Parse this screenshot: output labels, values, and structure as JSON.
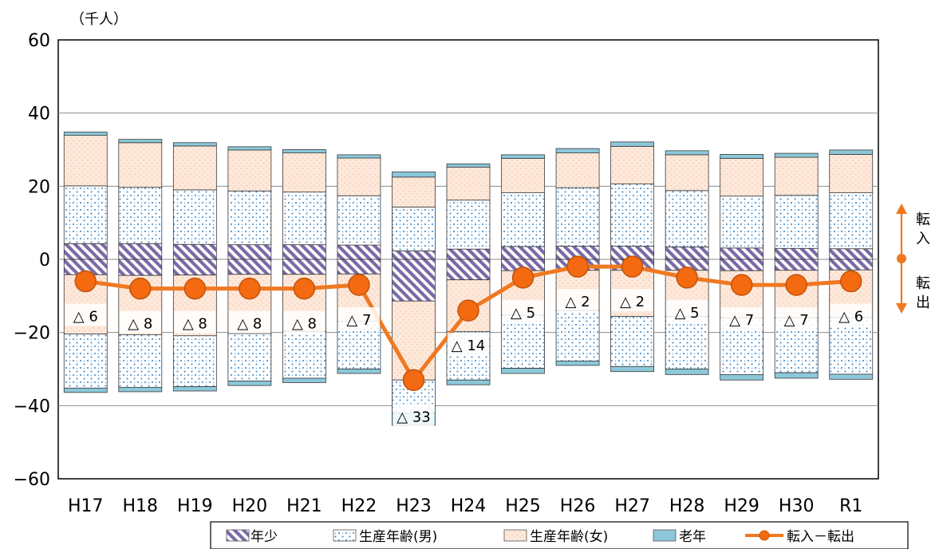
{
  "chart_data": {
    "type": "bar",
    "stacked": true,
    "unit_label": "（千人）",
    "categories": [
      "H17",
      "H18",
      "H19",
      "H20",
      "H21",
      "H22",
      "H23",
      "H24",
      "H25",
      "H26",
      "H27",
      "H28",
      "H29",
      "H30",
      "R1"
    ],
    "ylim": [
      -60,
      60
    ],
    "yticks": [
      60,
      40,
      20,
      0,
      -20,
      -40,
      -60
    ],
    "ytick_labels": [
      "60",
      "40",
      "20",
      "0",
      "−20",
      "−40",
      "−60"
    ],
    "grid": true,
    "in_series": [
      {
        "name": "年少",
        "values": [
          4.3,
          4.3,
          4.1,
          4.0,
          4.0,
          3.9,
          2.3,
          2.8,
          3.5,
          3.6,
          3.6,
          3.4,
          3.1,
          3.0,
          2.9
        ]
      },
      {
        "name": "生産年齢(男)",
        "values": [
          15.8,
          15.4,
          14.9,
          14.7,
          14.4,
          13.5,
          12.0,
          13.4,
          14.7,
          16.0,
          17.0,
          15.4,
          14.2,
          14.5,
          15.3
        ]
      },
      {
        "name": "生産年齢(女)",
        "values": [
          13.8,
          12.2,
          12.0,
          11.2,
          10.7,
          10.3,
          8.2,
          9.0,
          9.4,
          9.5,
          10.3,
          9.8,
          10.3,
          10.4,
          10.5
        ]
      },
      {
        "name": "老年",
        "values": [
          0.9,
          0.9,
          0.9,
          0.9,
          0.9,
          0.9,
          1.4,
          0.9,
          1.0,
          1.2,
          1.2,
          1.1,
          1.1,
          1.1,
          1.2
        ]
      }
    ],
    "out_series": [
      {
        "name": "年少",
        "values": [
          -4.2,
          -4.4,
          -4.3,
          -4.1,
          -4.1,
          -4.0,
          -11.4,
          -5.6,
          -3.1,
          -3.0,
          -3.0,
          -3.0,
          -3.1,
          -3.0,
          -2.9
        ]
      },
      {
        "name": "生産年齢(男)",
        "values": [
          -35.2,
          -35.0,
          -34.8,
          -33.3,
          -32.5,
          -30.0,
          -42.0,
          -33.0,
          -29.8,
          -27.8,
          -29.3,
          -30.0,
          -31.5,
          -31.0,
          -31.4
        ]
      },
      {
        "name": "老年",
        "values": [
          -1.2,
          -1.2,
          -1.2,
          -1.2,
          -1.2,
          -1.2,
          -3.4,
          -1.3,
          -1.4,
          -1.2,
          -1.4,
          -1.5,
          -1.5,
          -1.5,
          -1.4
        ]
      }
    ],
    "net_series": {
      "name": "転入－転出",
      "values": [
        -6,
        -8,
        -8,
        -8,
        -8,
        -7,
        -33,
        -14,
        -5,
        -2,
        -2,
        -5,
        -7,
        -7,
        -6
      ]
    },
    "data_labels": [
      "△ 6",
      "△ 8",
      "△ 8",
      "△ 8",
      "△ 8",
      "△ 7",
      "△ 33",
      "△ 14",
      "△ 5",
      "△ 2",
      "△ 2",
      "△ 5",
      "△ 7",
      "△ 7",
      "△ 6"
    ],
    "legend": {
      "placement": "bottom",
      "entries": [
        "年少",
        "生産年齢(男)",
        "生産年齢(女)",
        "老年",
        "転入－転出"
      ]
    },
    "side_annotation": {
      "top": [
        "転",
        "入"
      ],
      "bottom": [
        "転",
        "出"
      ]
    },
    "colors": {
      "child": "#7b6aa6",
      "male_dots": "#3a85c6",
      "female_fill": "#fbe3d3",
      "elderly": "#8cc8da",
      "net_line": "#f07820",
      "net_marker": "#f46a10"
    }
  }
}
